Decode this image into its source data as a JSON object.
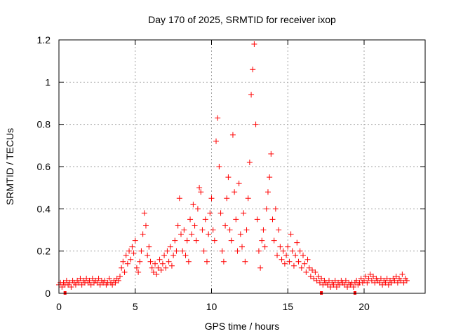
{
  "chart_data": {
    "type": "scatter",
    "title": "Day 170 of 2025, SRMTID for receiver ixop",
    "xlabel": "GPS time / hours",
    "ylabel": "SRMTID / TECUs",
    "xlim": [
      0,
      24
    ],
    "ylim": [
      0,
      1.2
    ],
    "xticks": [
      0,
      5,
      10,
      15,
      20
    ],
    "yticks": [
      0,
      0.2,
      0.4,
      0.6,
      0.8,
      1,
      1.2
    ],
    "xtick_labels": [
      "0",
      "5",
      "10",
      "15",
      "20"
    ],
    "ytick_labels": [
      "0",
      "0.2",
      "0.4",
      "0.6",
      "0.8",
      "1",
      "1.2"
    ],
    "grid": true,
    "marker": "plus",
    "color": "#ff0000",
    "series": [
      {
        "name": "SRMTID",
        "points": [
          [
            0.0,
            0.04
          ],
          [
            0.1,
            0.05
          ],
          [
            0.2,
            0.03
          ],
          [
            0.3,
            0.05
          ],
          [
            0.4,
            0.04
          ],
          [
            0.5,
            0.06
          ],
          [
            0.6,
            0.04
          ],
          [
            0.7,
            0.05
          ],
          [
            0.8,
            0.03
          ],
          [
            0.9,
            0.06
          ],
          [
            1.0,
            0.05
          ],
          [
            1.1,
            0.04
          ],
          [
            1.2,
            0.06
          ],
          [
            1.3,
            0.05
          ],
          [
            1.4,
            0.07
          ],
          [
            1.5,
            0.04
          ],
          [
            1.6,
            0.06
          ],
          [
            1.7,
            0.05
          ],
          [
            1.8,
            0.07
          ],
          [
            1.9,
            0.05
          ],
          [
            2.0,
            0.06
          ],
          [
            2.1,
            0.04
          ],
          [
            2.2,
            0.07
          ],
          [
            2.3,
            0.05
          ],
          [
            2.4,
            0.06
          ],
          [
            2.5,
            0.05
          ],
          [
            2.6,
            0.07
          ],
          [
            2.7,
            0.04
          ],
          [
            2.8,
            0.06
          ],
          [
            2.9,
            0.05
          ],
          [
            3.0,
            0.06
          ],
          [
            3.1,
            0.04
          ],
          [
            3.2,
            0.05
          ],
          [
            3.3,
            0.07
          ],
          [
            3.4,
            0.05
          ],
          [
            3.5,
            0.04
          ],
          [
            3.6,
            0.06
          ],
          [
            3.7,
            0.05
          ],
          [
            3.8,
            0.07
          ],
          [
            3.9,
            0.06
          ],
          [
            4.0,
            0.08
          ],
          [
            4.1,
            0.12
          ],
          [
            4.2,
            0.15
          ],
          [
            4.3,
            0.1
          ],
          [
            4.4,
            0.18
          ],
          [
            4.5,
            0.14
          ],
          [
            4.6,
            0.2
          ],
          [
            4.7,
            0.16
          ],
          [
            4.8,
            0.22
          ],
          [
            4.9,
            0.19
          ],
          [
            5.0,
            0.25
          ],
          [
            5.1,
            0.12
          ],
          [
            5.2,
            0.1
          ],
          [
            5.3,
            0.15
          ],
          [
            5.4,
            0.2
          ],
          [
            5.5,
            0.28
          ],
          [
            5.6,
            0.38
          ],
          [
            5.7,
            0.32
          ],
          [
            5.8,
            0.18
          ],
          [
            5.9,
            0.22
          ],
          [
            6.0,
            0.15
          ],
          [
            6.1,
            0.12
          ],
          [
            6.2,
            0.1
          ],
          [
            6.3,
            0.14
          ],
          [
            6.4,
            0.09
          ],
          [
            6.5,
            0.12
          ],
          [
            6.6,
            0.16
          ],
          [
            6.7,
            0.11
          ],
          [
            6.8,
            0.14
          ],
          [
            6.9,
            0.18
          ],
          [
            7.0,
            0.12
          ],
          [
            7.1,
            0.2
          ],
          [
            7.2,
            0.15
          ],
          [
            7.3,
            0.22
          ],
          [
            7.4,
            0.13
          ],
          [
            7.5,
            0.18
          ],
          [
            7.6,
            0.25
          ],
          [
            7.7,
            0.2
          ],
          [
            7.8,
            0.32
          ],
          [
            7.9,
            0.45
          ],
          [
            8.0,
            0.28
          ],
          [
            8.1,
            0.2
          ],
          [
            8.2,
            0.3
          ],
          [
            8.3,
            0.18
          ],
          [
            8.4,
            0.25
          ],
          [
            8.5,
            0.15
          ],
          [
            8.6,
            0.35
          ],
          [
            8.7,
            0.28
          ],
          [
            8.8,
            0.42
          ],
          [
            8.9,
            0.32
          ],
          [
            9.0,
            0.25
          ],
          [
            9.1,
            0.4
          ],
          [
            9.2,
            0.5
          ],
          [
            9.3,
            0.48
          ],
          [
            9.4,
            0.3
          ],
          [
            9.5,
            0.2
          ],
          [
            9.6,
            0.35
          ],
          [
            9.7,
            0.15
          ],
          [
            9.8,
            0.28
          ],
          [
            9.9,
            0.38
          ],
          [
            10.0,
            0.45
          ],
          [
            10.1,
            0.3
          ],
          [
            10.2,
            0.25
          ],
          [
            10.3,
            0.72
          ],
          [
            10.4,
            0.83
          ],
          [
            10.5,
            0.6
          ],
          [
            10.6,
            0.38
          ],
          [
            10.7,
            0.2
          ],
          [
            10.8,
            0.15
          ],
          [
            10.9,
            0.32
          ],
          [
            11.0,
            0.45
          ],
          [
            11.1,
            0.55
          ],
          [
            11.2,
            0.3
          ],
          [
            11.3,
            0.25
          ],
          [
            11.4,
            0.75
          ],
          [
            11.5,
            0.48
          ],
          [
            11.6,
            0.35
          ],
          [
            11.7,
            0.2
          ],
          [
            11.8,
            0.52
          ],
          [
            11.9,
            0.28
          ],
          [
            12.0,
            0.22
          ],
          [
            12.1,
            0.38
          ],
          [
            12.2,
            0.15
          ],
          [
            12.3,
            0.3
          ],
          [
            12.4,
            0.45
          ],
          [
            12.5,
            0.62
          ],
          [
            12.6,
            0.94
          ],
          [
            12.7,
            1.06
          ],
          [
            12.8,
            1.18
          ],
          [
            12.9,
            0.8
          ],
          [
            13.0,
            0.35
          ],
          [
            13.1,
            0.2
          ],
          [
            13.2,
            0.12
          ],
          [
            13.3,
            0.25
          ],
          [
            13.4,
            0.3
          ],
          [
            13.5,
            0.22
          ],
          [
            13.6,
            0.4
          ],
          [
            13.7,
            0.48
          ],
          [
            13.8,
            0.55
          ],
          [
            13.9,
            0.66
          ],
          [
            14.0,
            0.35
          ],
          [
            14.1,
            0.25
          ],
          [
            14.2,
            0.4
          ],
          [
            14.3,
            0.18
          ],
          [
            14.4,
            0.3
          ],
          [
            14.5,
            0.22
          ],
          [
            14.6,
            0.16
          ],
          [
            14.7,
            0.2
          ],
          [
            14.8,
            0.14
          ],
          [
            14.9,
            0.18
          ],
          [
            15.0,
            0.22
          ],
          [
            15.1,
            0.15
          ],
          [
            15.2,
            0.28
          ],
          [
            15.3,
            0.2
          ],
          [
            15.4,
            0.13
          ],
          [
            15.5,
            0.18
          ],
          [
            15.6,
            0.24
          ],
          [
            15.7,
            0.15
          ],
          [
            15.8,
            0.2
          ],
          [
            15.9,
            0.12
          ],
          [
            16.0,
            0.18
          ],
          [
            16.1,
            0.14
          ],
          [
            16.2,
            0.1
          ],
          [
            16.3,
            0.16
          ],
          [
            16.4,
            0.12
          ],
          [
            16.5,
            0.08
          ],
          [
            16.6,
            0.11
          ],
          [
            16.7,
            0.07
          ],
          [
            16.8,
            0.1
          ],
          [
            16.9,
            0.06
          ],
          [
            17.0,
            0.08
          ],
          [
            17.1,
            0.05
          ],
          [
            17.2,
            0.07
          ],
          [
            17.3,
            0.04
          ],
          [
            17.4,
            0.06
          ],
          [
            17.5,
            0.05
          ],
          [
            17.6,
            0.04
          ],
          [
            17.7,
            0.06
          ],
          [
            17.8,
            0.03
          ],
          [
            17.9,
            0.05
          ],
          [
            18.0,
            0.04
          ],
          [
            18.1,
            0.06
          ],
          [
            18.2,
            0.03
          ],
          [
            18.3,
            0.05
          ],
          [
            18.4,
            0.04
          ],
          [
            18.5,
            0.06
          ],
          [
            18.6,
            0.05
          ],
          [
            18.7,
            0.04
          ],
          [
            18.8,
            0.06
          ],
          [
            18.9,
            0.03
          ],
          [
            19.0,
            0.05
          ],
          [
            19.1,
            0.04
          ],
          [
            19.2,
            0.05
          ],
          [
            19.3,
            0.03
          ],
          [
            19.4,
            0.05
          ],
          [
            19.5,
            0.06
          ],
          [
            19.6,
            0.04
          ],
          [
            19.7,
            0.05
          ],
          [
            19.8,
            0.07
          ],
          [
            19.9,
            0.05
          ],
          [
            20.0,
            0.06
          ],
          [
            20.1,
            0.08
          ],
          [
            20.2,
            0.05
          ],
          [
            20.3,
            0.07
          ],
          [
            20.4,
            0.09
          ],
          [
            20.5,
            0.06
          ],
          [
            20.6,
            0.08
          ],
          [
            20.7,
            0.05
          ],
          [
            20.8,
            0.07
          ],
          [
            20.9,
            0.06
          ],
          [
            21.0,
            0.05
          ],
          [
            21.1,
            0.07
          ],
          [
            21.2,
            0.04
          ],
          [
            21.3,
            0.06
          ],
          [
            21.4,
            0.05
          ],
          [
            21.5,
            0.07
          ],
          [
            21.6,
            0.04
          ],
          [
            21.7,
            0.06
          ],
          [
            21.8,
            0.05
          ],
          [
            21.9,
            0.07
          ],
          [
            22.0,
            0.06
          ],
          [
            22.1,
            0.08
          ],
          [
            22.2,
            0.05
          ],
          [
            22.3,
            0.07
          ],
          [
            22.4,
            0.06
          ],
          [
            22.5,
            0.09
          ],
          [
            22.6,
            0.05
          ],
          [
            22.7,
            0.07
          ],
          [
            22.8,
            0.06
          ]
        ]
      }
    ],
    "gap_markers": [
      0.4,
      17.2,
      19.4
    ]
  }
}
